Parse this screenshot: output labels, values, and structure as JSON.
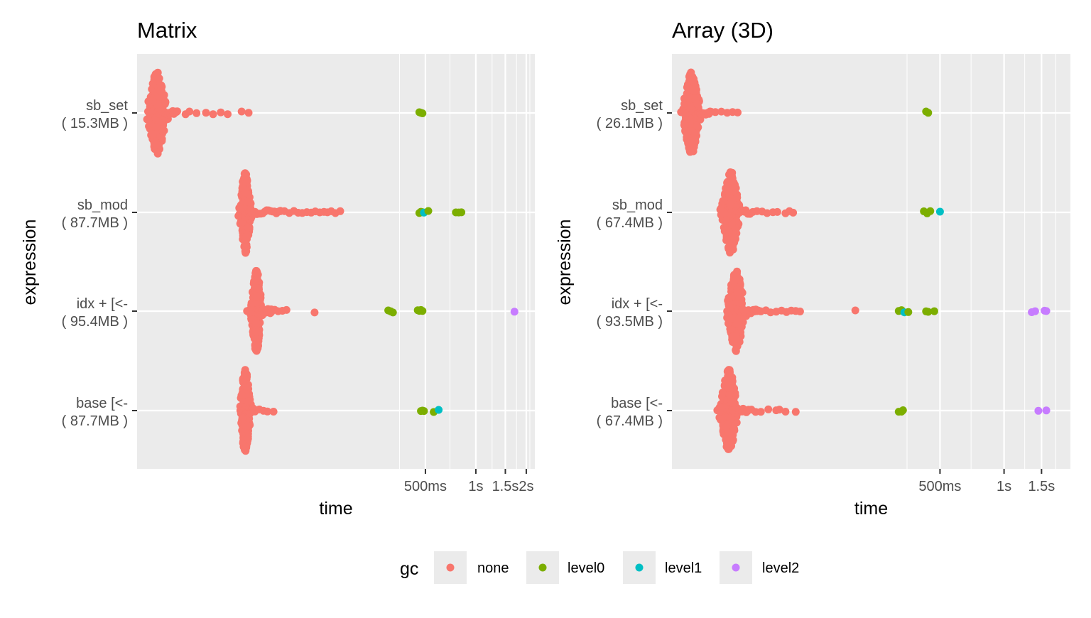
{
  "colors": {
    "none": "#F8766D",
    "level0": "#7CAE00",
    "level1": "#00BFC4",
    "level2": "#C77CFF",
    "panel_bg": "#EBEBEB",
    "grid": "#FFFFFF"
  },
  "legend": {
    "title": "gc",
    "entries": [
      {
        "key": "none",
        "label": "none"
      },
      {
        "key": "level0",
        "label": "level0"
      },
      {
        "key": "level1",
        "label": "level1"
      },
      {
        "key": "level2",
        "label": "level2"
      }
    ]
  },
  "chart_data": [
    {
      "type": "scatter",
      "subtype": "beeswarm",
      "title": "Matrix",
      "xlabel": "time",
      "ylabel": "expression",
      "x_scale": "log10",
      "x_units": "seconds",
      "xlim": [
        0.0095,
        2.25
      ],
      "x_ticks": [
        {
          "value": 0.5,
          "label": "500ms"
        },
        {
          "value": 1,
          "label": "1s"
        },
        {
          "value": 1.5,
          "label": "1.5s"
        },
        {
          "value": 2,
          "label": "2s"
        }
      ],
      "x_minor": [
        0.35,
        0.7,
        1.25,
        1.75,
        2.1
      ],
      "categories": [
        {
          "label": "sb_set\n( 15.3MB )",
          "line1": "sb_set",
          "line2": "( 15.3MB )"
        },
        {
          "label": "sb_mod\n( 87.7MB )",
          "line1": "sb_mod",
          "line2": "( 87.7MB )"
        },
        {
          "label": "idx + [<-\n( 95.4MB )",
          "line1": "idx + [<-",
          "line2": "( 95.4MB )"
        },
        {
          "label": "base [<-\n( 87.7MB )",
          "line1": "base [<-",
          "line2": "( 87.7MB )"
        }
      ],
      "swarms": [
        {
          "category": 0,
          "center": 0.0125,
          "spread": 0.07,
          "max_offset": 58,
          "tail_end": 0.0165,
          "count": 260
        },
        {
          "category": 1,
          "center": 0.042,
          "spread": 0.04,
          "max_offset": 58,
          "tail_end": 0.068,
          "count": 220
        },
        {
          "category": 2,
          "center": 0.049,
          "spread": 0.04,
          "max_offset": 58,
          "tail_end": 0.06,
          "count": 220
        },
        {
          "category": 3,
          "center": 0.042,
          "spread": 0.04,
          "max_offset": 58,
          "tail_end": 0.048,
          "count": 220
        }
      ],
      "points": [
        {
          "category": 0,
          "x": 0.0185,
          "gc": "none"
        },
        {
          "category": 0,
          "x": 0.0195,
          "gc": "none"
        },
        {
          "category": 0,
          "x": 0.0215,
          "gc": "none"
        },
        {
          "category": 0,
          "x": 0.0245,
          "gc": "none"
        },
        {
          "category": 0,
          "x": 0.027,
          "gc": "none"
        },
        {
          "category": 0,
          "x": 0.03,
          "gc": "none"
        },
        {
          "category": 0,
          "x": 0.033,
          "gc": "none"
        },
        {
          "category": 0,
          "x": 0.04,
          "gc": "none"
        },
        {
          "category": 0,
          "x": 0.044,
          "gc": "none"
        },
        {
          "category": 0,
          "x": 0.46,
          "gc": "level0"
        },
        {
          "category": 0,
          "x": 0.47,
          "gc": "level0"
        },
        {
          "category": 0,
          "x": 0.48,
          "gc": "level0"
        },
        {
          "category": 1,
          "x": 0.068,
          "gc": "none"
        },
        {
          "category": 1,
          "x": 0.072,
          "gc": "none"
        },
        {
          "category": 1,
          "x": 0.077,
          "gc": "none"
        },
        {
          "category": 1,
          "x": 0.082,
          "gc": "none"
        },
        {
          "category": 1,
          "x": 0.087,
          "gc": "none"
        },
        {
          "category": 1,
          "x": 0.092,
          "gc": "none"
        },
        {
          "category": 1,
          "x": 0.098,
          "gc": "none"
        },
        {
          "category": 1,
          "x": 0.104,
          "gc": "none"
        },
        {
          "category": 1,
          "x": 0.11,
          "gc": "none"
        },
        {
          "category": 1,
          "x": 0.117,
          "gc": "none"
        },
        {
          "category": 1,
          "x": 0.124,
          "gc": "none"
        },
        {
          "category": 1,
          "x": 0.13,
          "gc": "none"
        },
        {
          "category": 1,
          "x": 0.137,
          "gc": "none"
        },
        {
          "category": 1,
          "x": 0.145,
          "gc": "none"
        },
        {
          "category": 1,
          "x": 0.155,
          "gc": "none"
        },
        {
          "category": 1,
          "x": 0.46,
          "gc": "level0"
        },
        {
          "category": 1,
          "x": 0.47,
          "gc": "level0"
        },
        {
          "category": 1,
          "x": 0.48,
          "gc": "level0"
        },
        {
          "category": 1,
          "x": 0.49,
          "gc": "level1"
        },
        {
          "category": 1,
          "x": 0.52,
          "gc": "level0"
        },
        {
          "category": 1,
          "x": 0.76,
          "gc": "level0"
        },
        {
          "category": 1,
          "x": 0.79,
          "gc": "level0"
        },
        {
          "category": 1,
          "x": 0.82,
          "gc": "level0"
        },
        {
          "category": 2,
          "x": 0.06,
          "gc": "none"
        },
        {
          "category": 2,
          "x": 0.063,
          "gc": "none"
        },
        {
          "category": 2,
          "x": 0.066,
          "gc": "none"
        },
        {
          "category": 2,
          "x": 0.07,
          "gc": "none"
        },
        {
          "category": 2,
          "x": 0.074,
          "gc": "none"
        },
        {
          "category": 2,
          "x": 0.109,
          "gc": "none"
        },
        {
          "category": 2,
          "x": 0.3,
          "gc": "level0"
        },
        {
          "category": 2,
          "x": 0.31,
          "gc": "level0"
        },
        {
          "category": 2,
          "x": 0.32,
          "gc": "level0"
        },
        {
          "category": 2,
          "x": 0.45,
          "gc": "level0"
        },
        {
          "category": 2,
          "x": 0.46,
          "gc": "level0"
        },
        {
          "category": 2,
          "x": 0.47,
          "gc": "level0"
        },
        {
          "category": 2,
          "x": 0.48,
          "gc": "level0"
        },
        {
          "category": 2,
          "x": 1.7,
          "gc": "level2"
        },
        {
          "category": 3,
          "x": 0.048,
          "gc": "none"
        },
        {
          "category": 3,
          "x": 0.051,
          "gc": "none"
        },
        {
          "category": 3,
          "x": 0.054,
          "gc": "none"
        },
        {
          "category": 3,
          "x": 0.057,
          "gc": "none"
        },
        {
          "category": 3,
          "x": 0.062,
          "gc": "none"
        },
        {
          "category": 3,
          "x": 0.47,
          "gc": "level0"
        },
        {
          "category": 3,
          "x": 0.48,
          "gc": "level0"
        },
        {
          "category": 3,
          "x": 0.49,
          "gc": "level0"
        },
        {
          "category": 3,
          "x": 0.56,
          "gc": "level0"
        },
        {
          "category": 3,
          "x": 0.6,
          "gc": "level1"
        }
      ]
    },
    {
      "type": "scatter",
      "subtype": "beeswarm",
      "title": "Array (3D)",
      "xlabel": "time",
      "ylabel": "expression",
      "x_scale": "log10",
      "x_units": "seconds",
      "xlim": [
        0.0275,
        2.05
      ],
      "x_ticks": [
        {
          "value": 0.5,
          "label": "500ms"
        },
        {
          "value": 1,
          "label": "1s"
        },
        {
          "value": 1.5,
          "label": "1.5s"
        }
      ],
      "x_minor": [
        0.35,
        0.7,
        1.25,
        1.75
      ],
      "categories": [
        {
          "label": "sb_set\n( 26.1MB )",
          "line1": "sb_set",
          "line2": "( 26.1MB )"
        },
        {
          "label": "sb_mod\n( 67.4MB )",
          "line1": "sb_mod",
          "line2": "( 67.4MB )"
        },
        {
          "label": "idx + [<-\n( 93.5MB )",
          "line1": "idx + [<-",
          "line2": "( 93.5MB )"
        },
        {
          "label": "base [<-\n( 67.4MB )",
          "line1": "base [<-",
          "line2": "( 67.4MB )"
        }
      ],
      "swarms": [
        {
          "category": 0,
          "center": 0.034,
          "spread": 0.05,
          "max_offset": 58,
          "tail_end": 0.042,
          "count": 240
        },
        {
          "category": 1,
          "center": 0.052,
          "spread": 0.05,
          "max_offset": 58,
          "tail_end": 0.064,
          "count": 220
        },
        {
          "category": 2,
          "center": 0.055,
          "spread": 0.05,
          "max_offset": 58,
          "tail_end": 0.07,
          "count": 220
        },
        {
          "category": 3,
          "center": 0.051,
          "spread": 0.05,
          "max_offset": 58,
          "tail_end": 0.063,
          "count": 220
        }
      ],
      "points": [
        {
          "category": 0,
          "x": 0.044,
          "gc": "none"
        },
        {
          "category": 0,
          "x": 0.047,
          "gc": "none"
        },
        {
          "category": 0,
          "x": 0.05,
          "gc": "none"
        },
        {
          "category": 0,
          "x": 0.053,
          "gc": "none"
        },
        {
          "category": 0,
          "x": 0.056,
          "gc": "none"
        },
        {
          "category": 0,
          "x": 0.43,
          "gc": "level0"
        },
        {
          "category": 0,
          "x": 0.44,
          "gc": "level0"
        },
        {
          "category": 1,
          "x": 0.066,
          "gc": "none"
        },
        {
          "category": 1,
          "x": 0.069,
          "gc": "none"
        },
        {
          "category": 1,
          "x": 0.073,
          "gc": "none"
        },
        {
          "category": 1,
          "x": 0.077,
          "gc": "none"
        },
        {
          "category": 1,
          "x": 0.082,
          "gc": "none"
        },
        {
          "category": 1,
          "x": 0.086,
          "gc": "none"
        },
        {
          "category": 1,
          "x": 0.094,
          "gc": "none"
        },
        {
          "category": 1,
          "x": 0.098,
          "gc": "none"
        },
        {
          "category": 1,
          "x": 0.102,
          "gc": "none"
        },
        {
          "category": 1,
          "x": 0.42,
          "gc": "level0"
        },
        {
          "category": 1,
          "x": 0.435,
          "gc": "level0"
        },
        {
          "category": 1,
          "x": 0.45,
          "gc": "level0"
        },
        {
          "category": 1,
          "x": 0.5,
          "gc": "level1"
        },
        {
          "category": 2,
          "x": 0.072,
          "gc": "none"
        },
        {
          "category": 2,
          "x": 0.076,
          "gc": "none"
        },
        {
          "category": 2,
          "x": 0.08,
          "gc": "none"
        },
        {
          "category": 2,
          "x": 0.085,
          "gc": "none"
        },
        {
          "category": 2,
          "x": 0.09,
          "gc": "none"
        },
        {
          "category": 2,
          "x": 0.095,
          "gc": "none"
        },
        {
          "category": 2,
          "x": 0.1,
          "gc": "none"
        },
        {
          "category": 2,
          "x": 0.105,
          "gc": "none"
        },
        {
          "category": 2,
          "x": 0.11,
          "gc": "none"
        },
        {
          "category": 2,
          "x": 0.2,
          "gc": "none"
        },
        {
          "category": 2,
          "x": 0.32,
          "gc": "level0"
        },
        {
          "category": 2,
          "x": 0.33,
          "gc": "level0"
        },
        {
          "category": 2,
          "x": 0.34,
          "gc": "level1"
        },
        {
          "category": 2,
          "x": 0.355,
          "gc": "level0"
        },
        {
          "category": 2,
          "x": 0.43,
          "gc": "level0"
        },
        {
          "category": 2,
          "x": 0.44,
          "gc": "level0"
        },
        {
          "category": 2,
          "x": 0.47,
          "gc": "level0"
        },
        {
          "category": 2,
          "x": 1.35,
          "gc": "level2"
        },
        {
          "category": 2,
          "x": 1.4,
          "gc": "level2"
        },
        {
          "category": 2,
          "x": 1.55,
          "gc": "level2"
        },
        {
          "category": 2,
          "x": 1.58,
          "gc": "level2"
        },
        {
          "category": 3,
          "x": 0.065,
          "gc": "none"
        },
        {
          "category": 3,
          "x": 0.068,
          "gc": "none"
        },
        {
          "category": 3,
          "x": 0.072,
          "gc": "none"
        },
        {
          "category": 3,
          "x": 0.078,
          "gc": "none"
        },
        {
          "category": 3,
          "x": 0.085,
          "gc": "none"
        },
        {
          "category": 3,
          "x": 0.088,
          "gc": "none"
        },
        {
          "category": 3,
          "x": 0.094,
          "gc": "none"
        },
        {
          "category": 3,
          "x": 0.105,
          "gc": "none"
        },
        {
          "category": 3,
          "x": 0.32,
          "gc": "level0"
        },
        {
          "category": 3,
          "x": 0.33,
          "gc": "level0"
        },
        {
          "category": 3,
          "x": 0.335,
          "gc": "level0"
        },
        {
          "category": 3,
          "x": 1.45,
          "gc": "level2"
        },
        {
          "category": 3,
          "x": 1.58,
          "gc": "level2"
        }
      ]
    }
  ]
}
